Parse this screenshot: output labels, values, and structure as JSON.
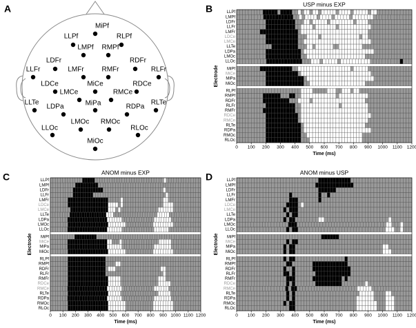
{
  "head_map": {
    "panel": "A",
    "electrodes": [
      "MiPf",
      "LLPf",
      "RLPf",
      "LMPf",
      "RMPf",
      "LDFr",
      "RDFr",
      "LLFr",
      "LMFr",
      "RMFr",
      "RLFr",
      "LDCe",
      "MiCe",
      "RDCe",
      "LMCe",
      "RMCe",
      "LLTe",
      "LDPa",
      "MiPa",
      "RDPa",
      "RLTe",
      "LMOc",
      "RMOc",
      "LLOc",
      "RLOc",
      "MiOc"
    ]
  },
  "chart_data": [
    {
      "type": "raster",
      "panel": "B",
      "title": "USP minus EXP",
      "xlabel": "Time (ms)",
      "ylabel": "Electrode",
      "xlim": [
        0,
        1200
      ],
      "xticks": [
        0,
        100,
        200,
        300,
        400,
        500,
        600,
        700,
        800,
        900,
        1000,
        1100,
        1200
      ],
      "colors": {
        "b": "#000000",
        "g": "#999999",
        "w": "#ffffff"
      },
      "groups": [
        [
          {
            "name": "LLPf",
            "label_color": "#000",
            "cells": "gggggggggbbbbbgbbbbggwgwwgwwgwwwwwgwwwwgwwwwwgwwgggggggggggg"
          },
          {
            "name": "LMPf",
            "label_color": "#000",
            "cells": "gggggggggbbbbbbbbbbggwgwwwwgwwwwgwwwwwgwwwwwwwggggggggggggg"
          },
          {
            "name": "LDFr",
            "label_color": "#000",
            "cells": "ggggggggggbbbbbbbbbbgggwwgwwwwwgwwwwwwwwgwwwwggggggggggggggg"
          },
          {
            "name": "LLFr",
            "label_color": "#000",
            "cells": "ggggggggggbbbbbbbbbbggwwwwgwwwwwwwgwwwwwwwwwwwgggggggggggggg"
          },
          {
            "name": "LMFr",
            "label_color": "#000",
            "cells": "ggggggggbbbbbbbbbbbbbgwwwwwwwwwwwwwwwwwwwwwwwggggggggggggggg"
          },
          {
            "name": "LDCe",
            "label_color": "#999",
            "cells": "ggggggggggbbbbbbbbbbbgggwwwwgwwwwwwwwwwwwwgwwggggggggggggggg"
          },
          {
            "name": "LMCe",
            "label_color": "#999",
            "cells": "ggggggggggbbbbbbbbbbbggwwwwwwwwwwwwwwwwwwwwwwwgggggggggggggg"
          },
          {
            "name": "LLTe",
            "label_color": "#000",
            "cells": "ggggggggggggbbbbbbbbbgggwwgwwwwwwggwwwwwwwwggggggggggggggggg"
          },
          {
            "name": "LDPa",
            "label_color": "#000",
            "cells": "ggggggggggbbbbbbbbbbbbgwwwwwwwwwwwwwwwwwwwwwwwwggggggggggggg"
          },
          {
            "name": "LMOc",
            "label_color": "#000",
            "cells": "ggggggggggbbbbbbbbbbbbggwwwwwwwwwwwwwwwwwwwwgggggggggggggggg"
          },
          {
            "name": "LLOc",
            "label_color": "#000",
            "cells": "ggggggggggbbbbbbbbbbbbgggwwwgwwwwwgwwwwwwwwwwggggggggggbggg"
          }
        ],
        [
          {
            "name": "MiPf",
            "label_color": "#000",
            "cells": "ggggggggbbbbbbbbbbbggwwwwwwwwwwwwwwwwwwgwwwwwggggggggggggggg"
          },
          {
            "name": "MiCe",
            "label_color": "#999",
            "cells": "ggggggggggbbbbbbbbbbbgwwwwwwwwwwwwwwwwwwwwwwwwgggggggggggggg"
          },
          {
            "name": "MiPa",
            "label_color": "#000",
            "cells": "ggggggggggbbbbbbbbbbbbbgwwwwwwwwwwwwwwwwwwwwwwwggggggggggggg"
          },
          {
            "name": "MiOc",
            "label_color": "#000",
            "cells": "ggggggggggbbbbbbbbbbbbbggwwwwwwwwwwwwwwwwwwwgggggggggggggggg"
          }
        ],
        [
          {
            "name": "RLPf",
            "label_color": "#000",
            "cells": "ggggggggggggggggggggggwwwwgggggwwwggwwwgwwgggggggggggggggggg"
          },
          {
            "name": "RMPf",
            "label_color": "#000",
            "cells": "gggggggggbbbbbbgggbbggwwwwwwwwwwwwgwwwwwwwwwwggggggggggggggg"
          },
          {
            "name": "RDFr",
            "label_color": "#000",
            "cells": "gggggggggbbbbbbbbbgggwwwwgwwwwwwwwwwwwwwwwwwgggggggggggggggg"
          },
          {
            "name": "RLFr",
            "label_color": "#000",
            "cells": "ggggggggggbbbbbbbbbbggwwwwwwwwwwwwwgwwwwwwwwwggggggggggggggg"
          },
          {
            "name": "RMFr",
            "label_color": "#000",
            "cells": "gggggggggbbbbbbbbbbbggwwwwwwwwwwwwwwwwwwwwwwwggggggggggggggg"
          },
          {
            "name": "RDCe",
            "label_color": "#999",
            "cells": "ggggggggggbbbbbbbbbbbgwwwwwwwwwwwwwwwwwwwwwwwwgggggggggggggg"
          },
          {
            "name": "RMCe",
            "label_color": "#999",
            "cells": "ggggggggggbbbbbbbbbbbgwwwwwwwwwwwwwwwwwwwwwwwggggggggggggggg"
          },
          {
            "name": "RLTe",
            "label_color": "#000",
            "cells": "ggggggggggbbbbbbbbbbbbgwwwwwwwwwwwwwwwwwwwwwgggggggggggggggg"
          },
          {
            "name": "RDPa",
            "label_color": "#000",
            "cells": "ggggggggggbbbbbbbbbbbbgwwwwwwwwwwwwwwwwwwwwwwwgggggggggggggg"
          },
          {
            "name": "RMOc",
            "label_color": "#000",
            "cells": "ggggggggggbbbbbbbbbbbbggwwwwwwwwwwwwwwwwwwwggggggggggggggggg"
          },
          {
            "name": "RLOc",
            "label_color": "#000",
            "cells": "ggggggggggbbbbbbbbbbbbgggwwwwwwwwwwwwwwwwwwggggggggggggggggg"
          }
        ]
      ]
    },
    {
      "type": "raster",
      "panel": "C",
      "title": "ANOM minus EXP",
      "xlabel": "Time (ms)",
      "ylabel": "Electrode",
      "xlim": [
        0,
        1200
      ],
      "xticks": [
        0,
        100,
        200,
        300,
        400,
        500,
        600,
        700,
        800,
        900,
        1000,
        1100,
        1200
      ],
      "colors": {
        "b": "#000000",
        "g": "#999999",
        "w": "#ffffff"
      },
      "groups": [
        [
          {
            "name": "LLPf",
            "label_color": "#000",
            "cells": "gggggggggggggbbbbbggggggggggggggggggggggggggggwgggggggggggggg"
          },
          {
            "name": "LMPf",
            "label_color": "#000",
            "cells": "ggggggggggbbbbbbbbbggggggggggggggggggggggggggggggggggggggggg"
          },
          {
            "name": "LDFr",
            "label_color": "#000",
            "cells": "gggggggggbbbbbbbbbbbbggggggggggggggggggggggggwgggggggggggggg"
          },
          {
            "name": "LLFr",
            "label_color": "#000",
            "cells": "gggggggggbbbbbbbbgggggggggggggggggggggggggggggwggggggggggggg"
          },
          {
            "name": "LMFr",
            "label_color": "#000",
            "cells": "gggggggbbbbbbbbbbbbbbbbgggggwggggggggggggggggwwggggggggggggg"
          },
          {
            "name": "LDCe",
            "label_color": "#999",
            "cells": "gggggggbbbbbbbbbbbbbbbbwwwwgwggggggggggggggggwwwwggggggggggg"
          },
          {
            "name": "LMCe",
            "label_color": "#999",
            "cells": "ggggggggbbbbbbbbbbbbbbbwwwgwgggggggggggggggwwwwwwggggggggggg"
          },
          {
            "name": "LLTe",
            "label_color": "#000",
            "cells": "ggggggggbbbbbbbbbbbbbbbwwwggggggggggggggggggwwwwwggggggggggggg"
          },
          {
            "name": "LDPa",
            "label_color": "#000",
            "cells": "gggggggbbbbbbbbbbbbbbbbwwwwwwgggggggggggggwwwwwwwgggggggggggg"
          },
          {
            "name": "LMOc",
            "label_color": "#000",
            "cells": "gggggggbbbbbbbbbbbbbbbbwwwwwwwgggggggggggwwwwwwwwggggggggggg"
          },
          {
            "name": "LLOc",
            "label_color": "#000",
            "cells": "gggggggbbbbbbbbbbbbbbbbwwwwwwgggggggggggggwwwwwwggggggggggggg"
          }
        ],
        [
          {
            "name": "MiPf",
            "label_color": "#000",
            "cells": "ggggggggggbbbbbbbbbggggggggggggggggggggggggggggggggggggggggggg"
          },
          {
            "name": "MiCe",
            "label_color": "#999",
            "cells": "gggggggbbbbbbbbbbbbbbbbwwgggwgggggggggggggggwwwwwgggggggggggg"
          },
          {
            "name": "MiPa",
            "label_color": "#000",
            "cells": "gggggggbbbbbbbbbbbbbbbbwwwwwwgggggggggggggwwwwwwwgggggggggggg"
          },
          {
            "name": "MiOc",
            "label_color": "#000",
            "cells": "gggggggbbbbbbbbbbbbbbbbwwwwwwwgggggggggggwwwwwwwwggggggggggg"
          }
        ],
        [
          {
            "name": "RLPf",
            "label_color": "#000",
            "cells": "gggggggbbbbbbbbbbbbbbbgggggggggggggggggggggggggggggggggggggg"
          },
          {
            "name": "RMPf",
            "label_color": "#000",
            "cells": "gggggggbbbbbbbbbbbbbbbggggwwgggggggggggggggggggggggggggggggg"
          },
          {
            "name": "RDFr",
            "label_color": "#000",
            "cells": "gggggggbbbbbbbbbbbbbbbgwwwggggggggggggggggggwwgggggggggggggg"
          },
          {
            "name": "RLFr",
            "label_color": "#000",
            "cells": "gggggggbbbbbbbbbbbbbbbgggggggggggggggggggggggwgggggggggggggg"
          },
          {
            "name": "RMFr",
            "label_color": "#000",
            "cells": "gggggggbbbbbbbbbbbbbbbbwwwwwgggggggggggggggwwwgggggggggggggg"
          },
          {
            "name": "RDCe",
            "label_color": "#999",
            "cells": "gggggggbbbbbbbbbbbbbbbbwwwwwgggggggggggggggwwwwwgggggggggggg"
          },
          {
            "name": "RMCe",
            "label_color": "#999",
            "cells": "gggggggbbbbbbbbbbbbbbbbwwwwwwgggggggggggggwwwwwwggggggggggggg"
          },
          {
            "name": "RLTe",
            "label_color": "#000",
            "cells": "gggggggbbbbbbbbbbbbbbbbwwwwwgggggggggggggggwwwwwgggggggggggg"
          },
          {
            "name": "RDPa",
            "label_color": "#000",
            "cells": "gggggggbbbbbbbbbbbbbbbbwwwwwwgggggggggggggwwwwwwwgggggggggggg"
          },
          {
            "name": "RMOc",
            "label_color": "#000",
            "cells": "gggggggbbbbbbbbbbbbbbbbwwwwwwwgggggggggggwwwwwwwwggggggggggg"
          },
          {
            "name": "RLOc",
            "label_color": "#000",
            "cells": "gggggggbbbbbbbbbbbbbbbbwwwwwwwgggggggggggwwwwwwwwggggggggggg"
          }
        ]
      ]
    },
    {
      "type": "raster",
      "panel": "D",
      "title": "ANOM minus USP",
      "xlabel": "Time (ms)",
      "ylabel": "Electrode",
      "xlim": [
        0,
        1200
      ],
      "xticks": [
        0,
        100,
        200,
        300,
        400,
        500,
        600,
        700,
        800,
        900,
        1000,
        1100,
        1200
      ],
      "colors": {
        "b": "#000000",
        "g": "#999999",
        "w": "#ffffff"
      },
      "groups": [
        [
          {
            "name": "LLPf",
            "label_color": "#000",
            "cells": "ggggggggggggggggggggggggggggbbbbbbbbbbbggggggggggggggggggggg"
          },
          {
            "name": "LMPf",
            "label_color": "#000",
            "cells": "gggggggggggggggggggggggggggbbbbbbbbbbbbbgggggggggggggggggggg"
          },
          {
            "name": "LDFr",
            "label_color": "#000",
            "cells": "ggggggggggggggggggggggggggggbbbbbbgggggggggggggggggggggggggg"
          },
          {
            "name": "LLFr",
            "label_color": "#000",
            "cells": "ggggggggggggggggggbgggggggggbggbgggggggggggggggggggggggggggg"
          },
          {
            "name": "LMFr",
            "label_color": "#000",
            "cells": "ggggggggggggggggggbbbgggggggbggggggggggggggggggggggggggggggg"
          },
          {
            "name": "LDCe",
            "label_color": "#999",
            "cells": "gggggggggggggggggbbbbgwggggggggggggggggggggggggggggggggggggg"
          },
          {
            "name": "LMCe",
            "label_color": "#999",
            "cells": "ggggggggggggggggbgbbbggggggggggggggggggggggggggggggggggggggg"
          },
          {
            "name": "LLTe",
            "label_color": "#000",
            "cells": "gggggggggggggggggbgbbggggggggggggggggggggggggggggggggggggggg"
          },
          {
            "name": "LDPa",
            "label_color": "#000",
            "cells": "ggggggggggggggggbgbbggggggggwwggggggggggggggggggggggwggggggg"
          },
          {
            "name": "LMOc",
            "label_color": "#000",
            "cells": "ggggggggggggggggggbbbgggggggggggggggggggggggggggggggwwgggwggg"
          },
          {
            "name": "LLOc",
            "label_color": "#000",
            "cells": "gggggggggggggggggbgbbggggggggggggggggggggggggggggggwwwggwggg"
          }
        ],
        [
          {
            "name": "MiPf",
            "label_color": "#000",
            "cells": "gggggggggggggggggggggggggggggbbbbbbggggggggggggggggggggggggg"
          },
          {
            "name": "MiCe",
            "label_color": "#999",
            "cells": "gggggggggggggggggbgbbggggggggggggggggggggggggggggggggggggggg"
          },
          {
            "name": "MiPa",
            "label_color": "#000",
            "cells": "ggggggggggggggggbgbbggggggggggggggggggggggggggggggwwgggggggg"
          },
          {
            "name": "MiOc",
            "label_color": "#000",
            "cells": "ggggggggggggggggbgbbggggggggggggggggggggggggggggggwwwggggggg"
          }
        ],
        [
          {
            "name": "RLPf",
            "label_color": "#000",
            "cells": "ggggggggggggggggbgbbgggggggggggggggggbgggggggggggggggggggggg"
          },
          {
            "name": "RMPf",
            "label_color": "#000",
            "cells": "gggggggggggggggggbbgggggggbbbbbbbbbbbbgggggggggggggggggggggg"
          },
          {
            "name": "RDFr",
            "label_color": "#000",
            "cells": "ggggggggggggggggbggbggggggbbbbbbbbbbbbbggggggggggggggggggggg"
          },
          {
            "name": "RLFr",
            "label_color": "#000",
            "cells": "ggggggggggggggggbbgbgggggggbbbbbbbbbbbbggggggggggggggggggggg"
          },
          {
            "name": "RMFr",
            "label_color": "#000",
            "cells": "gggggggggggggggggbbbggggggbbbbbbbbbbgbgggggggggggggggggggggg"
          },
          {
            "name": "RDCe",
            "label_color": "#999",
            "cells": "gggggggggggggggggbgbgggggggbbbbbbbbbggggggggwggggggggggggggg"
          },
          {
            "name": "RMCe",
            "label_color": "#999",
            "cells": "gggggggggggggggggbgbbgggggggggggggggggggggwwwwwgggggggggggggg"
          },
          {
            "name": "RLTe",
            "label_color": "#000",
            "cells": "gggggggggggggggggbgbggggggggggggggggggggggwwwwwggggwwggggggg"
          },
          {
            "name": "RDPa",
            "label_color": "#000",
            "cells": "gggggggggggggggggbgbgggggggggggggggggggggwwwwwwggggwwwgggggg"
          },
          {
            "name": "RMOc",
            "label_color": "#000",
            "cells": "ggggggggggggggggbgbbgggggggggggggggggggggwwwwwwwgggwwwgggggg"
          },
          {
            "name": "RLOc",
            "label_color": "#000",
            "cells": "ggggggggggggggggggbbgggggggggggggggggggggwwwwwwwgggwwwgggggg"
          }
        ]
      ]
    }
  ]
}
